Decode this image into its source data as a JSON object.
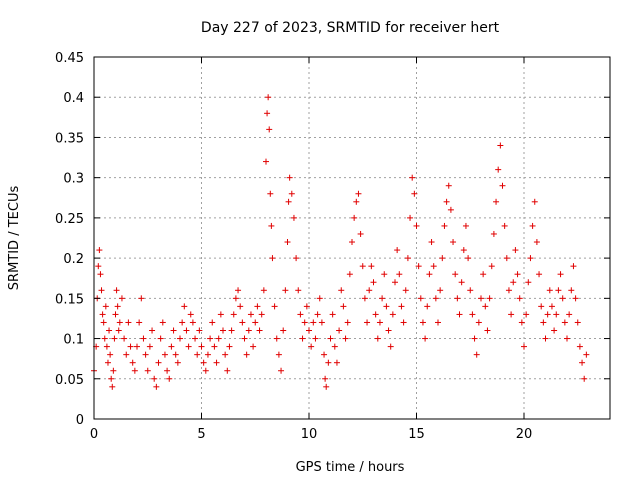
{
  "chart_data": {
    "type": "scatter",
    "title": "Day 227 of 2023, SRMTID for receiver hert",
    "xlabel": "GPS time / hours",
    "ylabel": "SRMTID / TECUs",
    "xlim": [
      0,
      24
    ],
    "ylim": [
      0,
      0.45
    ],
    "x_ticks": [
      0,
      5,
      10,
      15,
      20
    ],
    "y_ticks": [
      0,
      0.05,
      0.1,
      0.15,
      0.2,
      0.25,
      0.3,
      0.35,
      0.4,
      0.45
    ],
    "x_tick_labels": [
      "0",
      "5",
      "10",
      "15",
      "20"
    ],
    "y_tick_labels": [
      "0",
      "0.05",
      "0.1",
      "0.15",
      "0.2",
      "0.25",
      "0.3",
      "0.35",
      "0.4",
      "0.45"
    ],
    "grid": true,
    "marker": "+",
    "color": "#e00000",
    "points": [
      [
        0.0,
        0.06
      ],
      [
        0.1,
        0.09
      ],
      [
        0.15,
        0.15
      ],
      [
        0.2,
        0.19
      ],
      [
        0.25,
        0.21
      ],
      [
        0.3,
        0.18
      ],
      [
        0.35,
        0.16
      ],
      [
        0.4,
        0.13
      ],
      [
        0.45,
        0.12
      ],
      [
        0.5,
        0.1
      ],
      [
        0.55,
        0.14
      ],
      [
        0.6,
        0.09
      ],
      [
        0.65,
        0.07
      ],
      [
        0.7,
        0.11
      ],
      [
        0.75,
        0.08
      ],
      [
        0.8,
        0.05
      ],
      [
        0.85,
        0.04
      ],
      [
        0.9,
        0.06
      ],
      [
        0.95,
        0.1
      ],
      [
        1.0,
        0.13
      ],
      [
        1.05,
        0.16
      ],
      [
        1.1,
        0.14
      ],
      [
        1.15,
        0.11
      ],
      [
        1.2,
        0.12
      ],
      [
        1.3,
        0.15
      ],
      [
        1.4,
        0.1
      ],
      [
        1.5,
        0.08
      ],
      [
        1.6,
        0.12
      ],
      [
        1.7,
        0.09
      ],
      [
        1.8,
        0.07
      ],
      [
        1.9,
        0.06
      ],
      [
        2.0,
        0.09
      ],
      [
        2.1,
        0.12
      ],
      [
        2.2,
        0.15
      ],
      [
        2.3,
        0.1
      ],
      [
        2.4,
        0.08
      ],
      [
        2.5,
        0.06
      ],
      [
        2.6,
        0.09
      ],
      [
        2.7,
        0.11
      ],
      [
        2.8,
        0.05
      ],
      [
        2.9,
        0.04
      ],
      [
        3.0,
        0.07
      ],
      [
        3.1,
        0.1
      ],
      [
        3.2,
        0.12
      ],
      [
        3.3,
        0.08
      ],
      [
        3.4,
        0.06
      ],
      [
        3.5,
        0.05
      ],
      [
        3.6,
        0.09
      ],
      [
        3.7,
        0.11
      ],
      [
        3.8,
        0.08
      ],
      [
        3.9,
        0.07
      ],
      [
        4.0,
        0.1
      ],
      [
        4.1,
        0.12
      ],
      [
        4.2,
        0.14
      ],
      [
        4.3,
        0.11
      ],
      [
        4.4,
        0.09
      ],
      [
        4.5,
        0.13
      ],
      [
        4.6,
        0.12
      ],
      [
        4.7,
        0.1
      ],
      [
        4.8,
        0.08
      ],
      [
        4.9,
        0.11
      ],
      [
        5.0,
        0.09
      ],
      [
        5.1,
        0.07
      ],
      [
        5.2,
        0.06
      ],
      [
        5.3,
        0.08
      ],
      [
        5.4,
        0.1
      ],
      [
        5.5,
        0.12
      ],
      [
        5.6,
        0.09
      ],
      [
        5.7,
        0.07
      ],
      [
        5.8,
        0.1
      ],
      [
        5.9,
        0.13
      ],
      [
        6.0,
        0.11
      ],
      [
        6.1,
        0.08
      ],
      [
        6.2,
        0.06
      ],
      [
        6.3,
        0.09
      ],
      [
        6.4,
        0.11
      ],
      [
        6.5,
        0.13
      ],
      [
        6.6,
        0.15
      ],
      [
        6.7,
        0.16
      ],
      [
        6.8,
        0.14
      ],
      [
        6.9,
        0.12
      ],
      [
        7.0,
        0.1
      ],
      [
        7.1,
        0.08
      ],
      [
        7.2,
        0.11
      ],
      [
        7.3,
        0.13
      ],
      [
        7.4,
        0.09
      ],
      [
        7.5,
        0.12
      ],
      [
        7.6,
        0.14
      ],
      [
        7.7,
        0.11
      ],
      [
        7.8,
        0.13
      ],
      [
        7.9,
        0.16
      ],
      [
        8.0,
        0.32
      ],
      [
        8.05,
        0.38
      ],
      [
        8.1,
        0.4
      ],
      [
        8.15,
        0.36
      ],
      [
        8.2,
        0.28
      ],
      [
        8.25,
        0.24
      ],
      [
        8.3,
        0.2
      ],
      [
        8.4,
        0.14
      ],
      [
        8.5,
        0.1
      ],
      [
        8.6,
        0.08
      ],
      [
        8.7,
        0.06
      ],
      [
        8.8,
        0.11
      ],
      [
        8.9,
        0.16
      ],
      [
        9.0,
        0.22
      ],
      [
        9.05,
        0.27
      ],
      [
        9.1,
        0.3
      ],
      [
        9.2,
        0.28
      ],
      [
        9.3,
        0.25
      ],
      [
        9.4,
        0.2
      ],
      [
        9.5,
        0.16
      ],
      [
        9.6,
        0.13
      ],
      [
        9.7,
        0.1
      ],
      [
        9.8,
        0.12
      ],
      [
        9.9,
        0.14
      ],
      [
        10.0,
        0.11
      ],
      [
        10.1,
        0.09
      ],
      [
        10.2,
        0.12
      ],
      [
        10.3,
        0.1
      ],
      [
        10.4,
        0.13
      ],
      [
        10.5,
        0.15
      ],
      [
        10.6,
        0.12
      ],
      [
        10.7,
        0.08
      ],
      [
        10.75,
        0.05
      ],
      [
        10.8,
        0.04
      ],
      [
        10.9,
        0.07
      ],
      [
        11.0,
        0.1
      ],
      [
        11.1,
        0.13
      ],
      [
        11.2,
        0.09
      ],
      [
        11.3,
        0.07
      ],
      [
        11.4,
        0.11
      ],
      [
        11.5,
        0.16
      ],
      [
        11.6,
        0.14
      ],
      [
        11.7,
        0.1
      ],
      [
        11.8,
        0.12
      ],
      [
        11.9,
        0.18
      ],
      [
        12.0,
        0.22
      ],
      [
        12.1,
        0.25
      ],
      [
        12.2,
        0.27
      ],
      [
        12.3,
        0.28
      ],
      [
        12.4,
        0.23
      ],
      [
        12.5,
        0.19
      ],
      [
        12.6,
        0.15
      ],
      [
        12.7,
        0.12
      ],
      [
        12.8,
        0.16
      ],
      [
        12.9,
        0.19
      ],
      [
        13.0,
        0.17
      ],
      [
        13.1,
        0.13
      ],
      [
        13.2,
        0.1
      ],
      [
        13.3,
        0.12
      ],
      [
        13.4,
        0.15
      ],
      [
        13.5,
        0.18
      ],
      [
        13.6,
        0.14
      ],
      [
        13.7,
        0.11
      ],
      [
        13.8,
        0.09
      ],
      [
        13.9,
        0.13
      ],
      [
        14.0,
        0.17
      ],
      [
        14.1,
        0.21
      ],
      [
        14.2,
        0.18
      ],
      [
        14.3,
        0.14
      ],
      [
        14.4,
        0.12
      ],
      [
        14.5,
        0.16
      ],
      [
        14.6,
        0.2
      ],
      [
        14.7,
        0.25
      ],
      [
        14.8,
        0.3
      ],
      [
        14.9,
        0.28
      ],
      [
        15.0,
        0.24
      ],
      [
        15.1,
        0.19
      ],
      [
        15.2,
        0.15
      ],
      [
        15.3,
        0.12
      ],
      [
        15.4,
        0.1
      ],
      [
        15.5,
        0.14
      ],
      [
        15.6,
        0.18
      ],
      [
        15.7,
        0.22
      ],
      [
        15.8,
        0.19
      ],
      [
        15.9,
        0.15
      ],
      [
        16.0,
        0.12
      ],
      [
        16.1,
        0.16
      ],
      [
        16.2,
        0.2
      ],
      [
        16.3,
        0.24
      ],
      [
        16.4,
        0.27
      ],
      [
        16.5,
        0.29
      ],
      [
        16.6,
        0.26
      ],
      [
        16.7,
        0.22
      ],
      [
        16.8,
        0.18
      ],
      [
        16.9,
        0.15
      ],
      [
        17.0,
        0.13
      ],
      [
        17.1,
        0.17
      ],
      [
        17.2,
        0.21
      ],
      [
        17.3,
        0.24
      ],
      [
        17.4,
        0.2
      ],
      [
        17.5,
        0.16
      ],
      [
        17.6,
        0.13
      ],
      [
        17.7,
        0.1
      ],
      [
        17.8,
        0.08
      ],
      [
        17.9,
        0.12
      ],
      [
        18.0,
        0.15
      ],
      [
        18.1,
        0.18
      ],
      [
        18.2,
        0.14
      ],
      [
        18.3,
        0.11
      ],
      [
        18.4,
        0.15
      ],
      [
        18.5,
        0.19
      ],
      [
        18.6,
        0.23
      ],
      [
        18.7,
        0.27
      ],
      [
        18.8,
        0.31
      ],
      [
        18.9,
        0.34
      ],
      [
        19.0,
        0.29
      ],
      [
        19.1,
        0.24
      ],
      [
        19.2,
        0.2
      ],
      [
        19.3,
        0.16
      ],
      [
        19.4,
        0.13
      ],
      [
        19.5,
        0.17
      ],
      [
        19.6,
        0.21
      ],
      [
        19.7,
        0.18
      ],
      [
        19.8,
        0.15
      ],
      [
        19.9,
        0.12
      ],
      [
        20.0,
        0.09
      ],
      [
        20.1,
        0.13
      ],
      [
        20.2,
        0.17
      ],
      [
        20.3,
        0.2
      ],
      [
        20.4,
        0.24
      ],
      [
        20.5,
        0.27
      ],
      [
        20.6,
        0.22
      ],
      [
        20.7,
        0.18
      ],
      [
        20.8,
        0.14
      ],
      [
        20.9,
        0.12
      ],
      [
        21.0,
        0.1
      ],
      [
        21.1,
        0.13
      ],
      [
        21.2,
        0.16
      ],
      [
        21.3,
        0.14
      ],
      [
        21.4,
        0.11
      ],
      [
        21.5,
        0.13
      ],
      [
        21.6,
        0.16
      ],
      [
        21.7,
        0.18
      ],
      [
        21.8,
        0.15
      ],
      [
        21.9,
        0.12
      ],
      [
        22.0,
        0.1
      ],
      [
        22.1,
        0.13
      ],
      [
        22.2,
        0.16
      ],
      [
        22.3,
        0.19
      ],
      [
        22.4,
        0.15
      ],
      [
        22.5,
        0.12
      ],
      [
        22.6,
        0.09
      ],
      [
        22.7,
        0.07
      ],
      [
        22.8,
        0.05
      ],
      [
        22.9,
        0.08
      ]
    ]
  }
}
